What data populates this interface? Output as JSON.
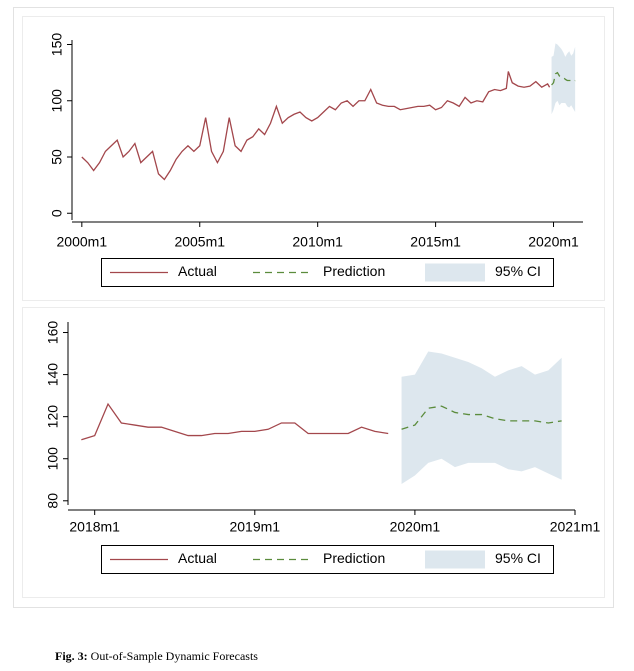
{
  "chart_data": [
    {
      "type": "line",
      "xlim": [
        "1999m8",
        "2021m4"
      ],
      "xticks": [
        "2000m1",
        "2005m1",
        "2010m1",
        "2015m1",
        "2020m1"
      ],
      "ylim": [
        -6,
        154
      ],
      "yticks": [
        0,
        50,
        100,
        150
      ],
      "series": [
        {
          "name": "Actual",
          "color": "#a3474c",
          "dash": "none",
          "x": [
            "2000m1",
            "2000m4",
            "2000m7",
            "2000m10",
            "2001m1",
            "2001m4",
            "2001m7",
            "2001m10",
            "2002m1",
            "2002m4",
            "2002m7",
            "2002m10",
            "2003m1",
            "2003m4",
            "2003m7",
            "2003m10",
            "2004m1",
            "2004m4",
            "2004m7",
            "2004m10",
            "2005m1",
            "2005m4",
            "2005m7",
            "2005m10",
            "2006m1",
            "2006m4",
            "2006m7",
            "2006m10",
            "2007m1",
            "2007m4",
            "2007m7",
            "2007m10",
            "2008m1",
            "2008m4",
            "2008m7",
            "2008m10",
            "2009m1",
            "2009m4",
            "2009m7",
            "2009m10",
            "2010m1",
            "2010m4",
            "2010m7",
            "2010m10",
            "2011m1",
            "2011m4",
            "2011m7",
            "2011m10",
            "2012m1",
            "2012m4",
            "2012m7",
            "2012m10",
            "2013m1",
            "2013m4",
            "2013m7",
            "2013m10",
            "2014m1",
            "2014m4",
            "2014m7",
            "2014m10",
            "2015m1",
            "2015m4",
            "2015m7",
            "2015m10",
            "2016m1",
            "2016m4",
            "2016m7",
            "2016m10",
            "2017m1",
            "2017m4",
            "2017m7",
            "2017m10",
            "2018m1",
            "2018m2",
            "2018m4",
            "2018m7",
            "2018m10",
            "2019m1",
            "2019m4",
            "2019m7",
            "2019m10",
            "2019m11"
          ],
          "values": [
            50,
            45,
            38,
            45,
            55,
            60,
            65,
            50,
            55,
            62,
            45,
            50,
            55,
            35,
            30,
            38,
            48,
            55,
            60,
            55,
            60,
            85,
            55,
            45,
            55,
            85,
            60,
            55,
            65,
            68,
            75,
            70,
            80,
            95,
            80,
            85,
            88,
            90,
            85,
            82,
            85,
            90,
            95,
            92,
            98,
            100,
            95,
            100,
            100,
            110,
            98,
            96,
            95,
            95,
            92,
            93,
            94,
            95,
            95,
            96,
            92,
            94,
            100,
            98,
            95,
            103,
            98,
            100,
            99,
            108,
            110,
            109,
            111,
            126,
            116,
            113,
            112,
            113,
            117,
            112,
            115,
            112
          ]
        },
        {
          "name": "Prediction",
          "color": "#5b8c3c",
          "dash": "7 5",
          "x": [
            "2019m12",
            "2020m1",
            "2020m2",
            "2020m3",
            "2020m4",
            "2020m5",
            "2020m6",
            "2020m7",
            "2020m8",
            "2020m9",
            "2020m10",
            "2020m11",
            "2020m12"
          ],
          "values": [
            114,
            116,
            124,
            125,
            122,
            121,
            121,
            119,
            118,
            118,
            118,
            117,
            118
          ]
        },
        {
          "name": "95% CI",
          "color": "#dde7ee",
          "x": [
            "2019m12",
            "2020m1",
            "2020m2",
            "2020m3",
            "2020m4",
            "2020m5",
            "2020m6",
            "2020m7",
            "2020m8",
            "2020m9",
            "2020m10",
            "2020m11",
            "2020m12"
          ],
          "upper": [
            139,
            140,
            151,
            150,
            148,
            146,
            143,
            139,
            142,
            144,
            140,
            142,
            148
          ],
          "lower": [
            88,
            92,
            98,
            100,
            96,
            98,
            98,
            98,
            95,
            94,
            96,
            93,
            90
          ]
        }
      ]
    },
    {
      "type": "line",
      "xlim": [
        "2017m11",
        "2021m1"
      ],
      "xticks": [
        "2018m1",
        "2019m1",
        "2020m1",
        "2021m1"
      ],
      "ylim": [
        78,
        165
      ],
      "yticks": [
        80,
        100,
        120,
        140,
        160
      ],
      "series": [
        {
          "name": "Actual",
          "color": "#a3474c",
          "dash": "none",
          "x": [
            "2017m12",
            "2018m1",
            "2018m2",
            "2018m3",
            "2018m4",
            "2018m5",
            "2018m6",
            "2018m7",
            "2018m8",
            "2018m9",
            "2018m10",
            "2018m11",
            "2018m12",
            "2019m1",
            "2019m2",
            "2019m3",
            "2019m4",
            "2019m5",
            "2019m6",
            "2019m7",
            "2019m8",
            "2019m9",
            "2019m10",
            "2019m11"
          ],
          "values": [
            109,
            111,
            126,
            117,
            116,
            115,
            115,
            113,
            111,
            111,
            112,
            112,
            113,
            113,
            114,
            117,
            117,
            112,
            112,
            112,
            112,
            115,
            113,
            112
          ]
        },
        {
          "name": "Prediction",
          "color": "#5b8c3c",
          "dash": "7 5",
          "x": [
            "2019m12",
            "2020m1",
            "2020m2",
            "2020m3",
            "2020m4",
            "2020m5",
            "2020m6",
            "2020m7",
            "2020m8",
            "2020m9",
            "2020m10",
            "2020m11",
            "2020m12"
          ],
          "values": [
            114,
            116,
            124,
            125,
            122,
            121,
            121,
            119,
            118,
            118,
            118,
            117,
            118
          ]
        },
        {
          "name": "95% CI",
          "color": "#dde7ee",
          "x": [
            "2019m12",
            "2020m1",
            "2020m2",
            "2020m3",
            "2020m4",
            "2020m5",
            "2020m6",
            "2020m7",
            "2020m8",
            "2020m9",
            "2020m10",
            "2020m11",
            "2020m12"
          ],
          "upper": [
            139,
            140,
            151,
            150,
            148,
            146,
            143,
            139,
            142,
            144,
            140,
            142,
            148
          ],
          "lower": [
            88,
            92,
            98,
            100,
            96,
            98,
            98,
            98,
            95,
            94,
            96,
            93,
            90
          ]
        }
      ]
    }
  ],
  "caption": {
    "label": "Fig. 3:",
    "text": "Out-of-Sample Dynamic Forecasts"
  }
}
